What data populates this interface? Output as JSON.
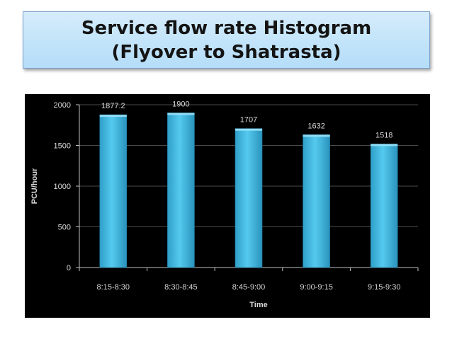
{
  "slide": {
    "title_line1": "Service flow rate Histogram",
    "title_line2": "(Flyover to Shatrasta)"
  },
  "colors": {
    "background": "#000000",
    "bar_light": "#4fc8ee",
    "bar_dark": "#2a9cc4",
    "text": "#d9d9d9",
    "grid": "#4a4a4a"
  },
  "chart_data": {
    "type": "bar",
    "title": "Service flow rate Histogram (Flyover to Shatrasta)",
    "categories": [
      "8:15-8:30",
      "8:30-8:45",
      "8:45-9:00",
      "9:00-9:15",
      "9:15-9:30"
    ],
    "values": [
      1877.2,
      1900,
      1707,
      1632,
      1518
    ],
    "data_labels": [
      "1877.2",
      "1900",
      "1707",
      "1632",
      "1518"
    ],
    "xlabel": "Time",
    "ylabel": "PCU/hour",
    "ylim": [
      0,
      2000
    ],
    "yticks": [
      0,
      500,
      1000,
      1500,
      2000
    ],
    "grid": true,
    "legend": "none"
  }
}
